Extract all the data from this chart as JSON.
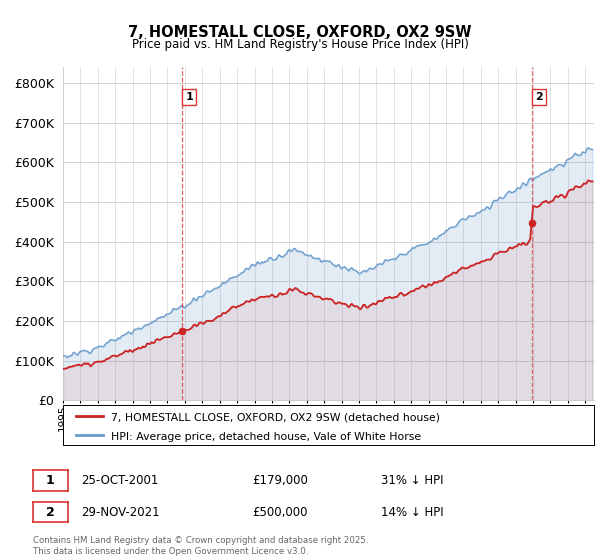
{
  "title": "7, HOMESTALL CLOSE, OXFORD, OX2 9SW",
  "subtitle": "Price paid vs. HM Land Registry's House Price Index (HPI)",
  "legend_label_red": "7, HOMESTALL CLOSE, OXFORD, OX2 9SW (detached house)",
  "legend_label_blue": "HPI: Average price, detached house, Vale of White Horse",
  "annotation1_label": "1",
  "annotation1_date": "25-OCT-2001",
  "annotation1_price": "£179,000",
  "annotation1_hpi": "31% ↓ HPI",
  "annotation2_label": "2",
  "annotation2_date": "29-NOV-2021",
  "annotation2_price": "£500,000",
  "annotation2_hpi": "14% ↓ HPI",
  "footnote": "Contains HM Land Registry data © Crown copyright and database right 2025.\nThis data is licensed under the Open Government Licence v3.0.",
  "sale1_year": 2001.82,
  "sale1_price": 179000,
  "sale2_year": 2021.92,
  "sale2_price": 500000,
  "red_color": "#cc2222",
  "blue_color": "#6699cc",
  "blue_fill_color": "#ddeeff",
  "vline_color": "#dd3333",
  "grid_color": "#cccccc",
  "background_color": "#ffffff",
  "ylim_max": 840000,
  "xlabel_fontsize": 7.5,
  "ylabel_fontsize": 9
}
